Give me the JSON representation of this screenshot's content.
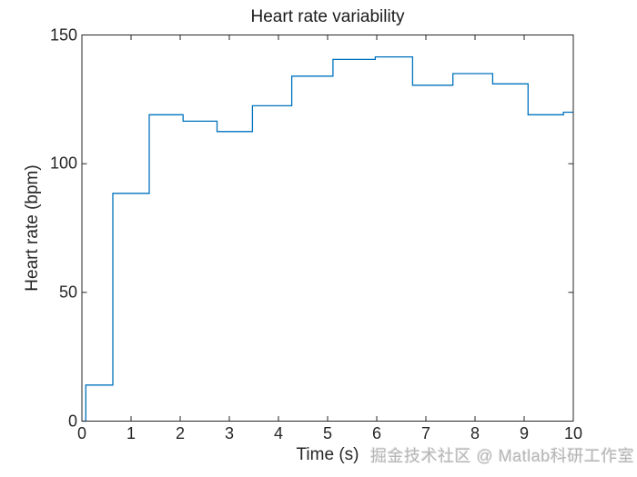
{
  "chart_data": {
    "type": "line",
    "subtype": "stairs",
    "title": "Heart rate variability",
    "xlabel": "Time (s)",
    "ylabel": "Heart rate (bpm)",
    "xlim": [
      0,
      10
    ],
    "ylim": [
      0,
      150
    ],
    "x_ticks": [
      "0",
      "1",
      "2",
      "3",
      "4",
      "5",
      "6",
      "7",
      "8",
      "9",
      "10"
    ],
    "y_ticks": [
      "0",
      "50",
      "100",
      "150"
    ],
    "grid": false,
    "legend": false,
    "line_color": "#0072BD",
    "axis_color": "#262626",
    "series": [
      {
        "name": "heart-rate",
        "x": [
          0,
          0.08,
          0.63,
          1.37,
          2.06,
          2.75,
          3.47,
          4.27,
          5.11,
          5.97,
          6.73,
          7.55,
          8.36,
          9.08,
          9.8
        ],
        "y": [
          0,
          14,
          88.5,
          119,
          116.5,
          112.5,
          122.5,
          134,
          140.5,
          141.5,
          130.5,
          135,
          131,
          119,
          120
        ]
      }
    ]
  },
  "watermark": {
    "text": "掘金技术社区 @ Matlab科研工作室",
    "color": "#b5b5b5"
  }
}
